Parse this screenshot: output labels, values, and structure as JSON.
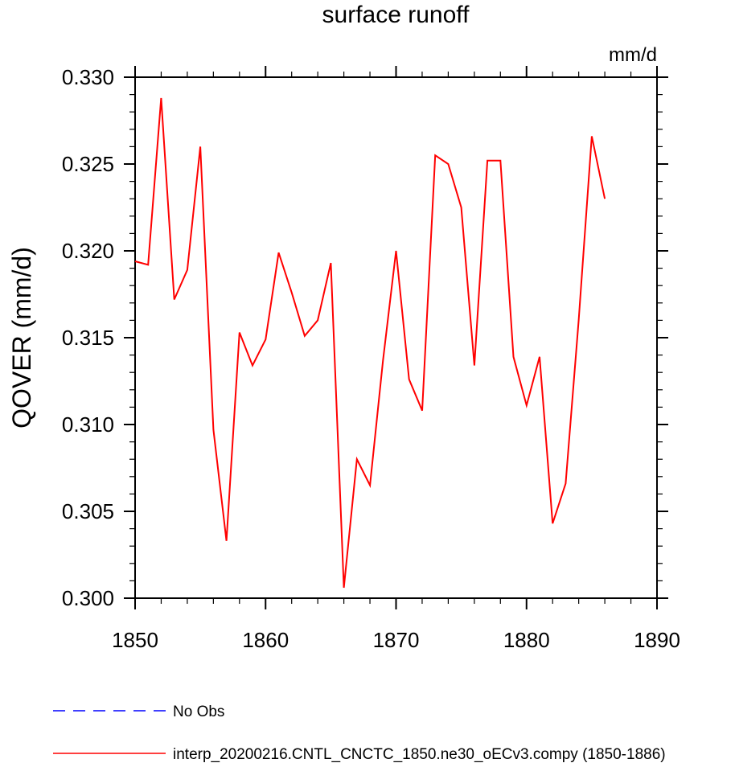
{
  "chart_data": {
    "type": "line",
    "title": "surface runoff",
    "units_label": "mm/d",
    "ylabel": "QOVER  (mm/d)",
    "xlabel": "",
    "xlim": [
      1850,
      1890
    ],
    "ylim": [
      0.3,
      0.33
    ],
    "x_ticks": [
      1850,
      1860,
      1870,
      1880,
      1890
    ],
    "x_tick_labels": [
      "1850",
      "1860",
      "1870",
      "1880",
      "1890"
    ],
    "y_ticks": [
      0.3,
      0.305,
      0.31,
      0.315,
      0.32,
      0.325,
      0.33
    ],
    "y_tick_labels": [
      "0.300",
      "0.305",
      "0.310",
      "0.315",
      "0.320",
      "0.325",
      "0.330"
    ],
    "grid": false,
    "legend_position": "bottom",
    "series": [
      {
        "name": "interp_20200216.CNTL_CNCTC_1850.ne30_oECv3.compy (1850-1886)",
        "color": "#ff0000",
        "style": "solid",
        "x": [
          1850,
          1851,
          1852,
          1853,
          1854,
          1855,
          1856,
          1857,
          1858,
          1859,
          1860,
          1861,
          1862,
          1863,
          1864,
          1865,
          1866,
          1867,
          1868,
          1869,
          1870,
          1871,
          1872,
          1873,
          1874,
          1875,
          1876,
          1877,
          1878,
          1879,
          1880,
          1881,
          1882,
          1883,
          1884,
          1885,
          1886
        ],
        "values": [
          0.3194,
          0.3192,
          0.3288,
          0.3172,
          0.3189,
          0.326,
          0.3097,
          0.3033,
          0.3153,
          0.3134,
          0.3149,
          0.3199,
          0.3176,
          0.3151,
          0.316,
          0.3193,
          0.3006,
          0.308,
          0.3065,
          0.3137,
          0.32,
          0.3126,
          0.3108,
          0.3255,
          0.325,
          0.3225,
          0.3134,
          0.3252,
          0.3252,
          0.3139,
          0.3111,
          0.3139,
          0.3043,
          0.3066,
          0.316,
          0.3266,
          0.323
        ]
      }
    ],
    "legend": [
      {
        "label": "No Obs",
        "color": "#0000ff",
        "style": "dashed"
      },
      {
        "label": "interp_20200216.CNTL_CNCTC_1850.ne30_oECv3.compy (1850-1886)",
        "color": "#ff0000",
        "style": "solid"
      }
    ]
  }
}
